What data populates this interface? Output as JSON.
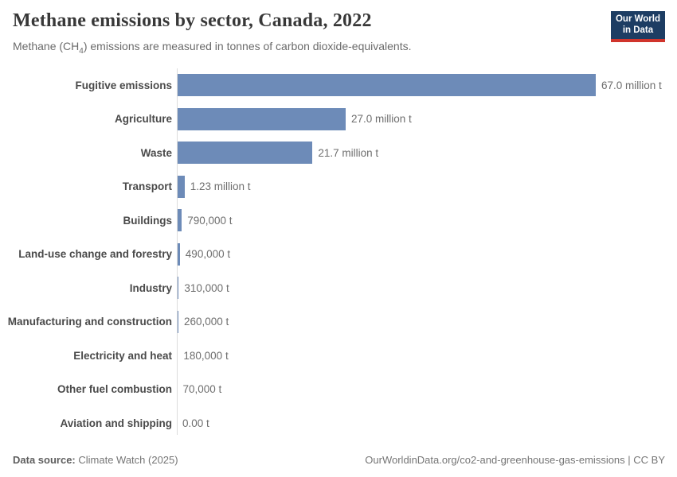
{
  "header": {
    "title": "Methane emissions by sector, Canada, 2022",
    "subtitle_pre": "Methane (CH",
    "subtitle_sub": "4",
    "subtitle_post": ") emissions are measured in tonnes of carbon dioxide-equivalents.",
    "logo_line1": "Our World",
    "logo_line2": "in Data",
    "logo_bg": "#1d3d63",
    "logo_accent": "#d0342c"
  },
  "chart_data": {
    "type": "bar",
    "orientation": "horizontal",
    "title": "Methane emissions by sector, Canada, 2022",
    "subtitle": "Methane (CH4) emissions are measured in tonnes of carbon dioxide-equivalents.",
    "unit": "tonnes of carbon dioxide-equivalents",
    "xlim": [
      0,
      67.0
    ],
    "grid": false,
    "legend": "none",
    "bar_color": "#6d8bb8",
    "axis_color": "#dcdcdc",
    "categories": [
      "Fugitive emissions",
      "Agriculture",
      "Waste",
      "Transport",
      "Buildings",
      "Land-use change and forestry",
      "Industry",
      "Manufacturing and construction",
      "Electricity and heat",
      "Other fuel combustion",
      "Aviation and shipping"
    ],
    "values": [
      67.0,
      27.0,
      21.7,
      1.23,
      0.79,
      0.49,
      0.31,
      0.26,
      0.18,
      0.07,
      0.0
    ],
    "value_labels": [
      "67.0 million t",
      "27.0 million t",
      "21.7 million t",
      "1.23 million t",
      "790,000 t",
      "490,000 t",
      "310,000 t",
      "260,000 t",
      "180,000 t",
      "70,000 t",
      "0.00 t"
    ]
  },
  "footer": {
    "source_label": "Data source:",
    "source_value": " Climate Watch (2025)",
    "attribution": "OurWorldinData.org/co2-and-greenhouse-gas-emissions | CC BY"
  }
}
